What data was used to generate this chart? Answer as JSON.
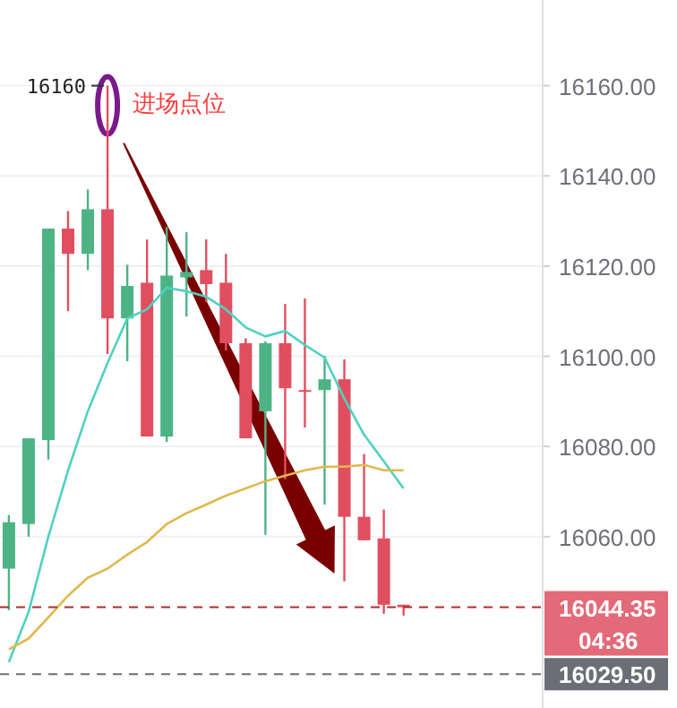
{
  "chart_data": {
    "type": "candlestick",
    "categories": [
      null,
      null,
      null,
      null,
      null,
      null,
      null,
      null,
      null,
      null,
      null,
      null,
      null,
      null,
      null,
      null,
      null,
      null,
      null,
      null,
      null
    ],
    "ohlc": [
      [
        16052.9,
        16064.8,
        16043.7,
        16063.2
      ],
      [
        16062.8,
        16081.8,
        16060.0,
        16081.8
      ],
      [
        16081.4,
        16128.3,
        16077.1,
        16128.3
      ],
      [
        16128.3,
        16132.2,
        16110.0,
        16122.7
      ],
      [
        16122.7,
        16137.0,
        16119.1,
        16132.6
      ],
      [
        16132.6,
        16160,
        16100.5,
        16108.4
      ],
      [
        16108.4,
        16120.3,
        16098.9,
        16115.6
      ],
      [
        16116.3,
        16125.9,
        16082.2,
        16082.2
      ],
      [
        16082.2,
        16128.7,
        16081.0,
        16117.9
      ],
      [
        16117.5,
        16127.5,
        16108.8,
        16118.7
      ],
      [
        16119.1,
        16125.9,
        16112.0,
        16116.0
      ],
      [
        16116.3,
        16122.7,
        16101.3,
        16102.9
      ],
      [
        16102.9,
        16104.0,
        16081.8,
        16081.8
      ],
      [
        16087.8,
        16103.3,
        16060.4,
        16102.9
      ],
      [
        16102.9,
        16111.6,
        16072.7,
        16092.9
      ],
      [
        16092.5,
        16112.8,
        16084.2,
        16092.3
      ],
      [
        16092.5,
        16100.1,
        16067.1,
        16094.9
      ],
      [
        16094.9,
        16099.3,
        16050.1,
        16064.4
      ],
      [
        16064.4,
        16078.3,
        16059.2,
        16059.2
      ],
      [
        16059.6,
        16066.0,
        16042.9,
        16044.9
      ],
      [
        16044.9,
        16044.9,
        16042.5,
        16044.35
      ]
    ],
    "colors": [
      "#4db385",
      "#4db385",
      "#4db385",
      "#e04f5f",
      "#4db385",
      "#e04f5f",
      "#4db385",
      "#e04f5f",
      "#4db385",
      "#4db385",
      "#e04f5f",
      "#e04f5f",
      "#e04f5f",
      "#4db385",
      "#e04f5f",
      "#e04f5f",
      "#4db385",
      "#e04f5f",
      "#e04f5f",
      "#e04f5f",
      "#e04f5f"
    ],
    "series": [
      {
        "type": "line",
        "color": "#4fd1c1",
        "values": [
          16032.2,
          16043.3,
          16060.0,
          16074.7,
          16087.8,
          16098.5,
          16108.4,
          16110.4,
          16115.2,
          16114.4,
          16113.2,
          16110.4,
          16106.4,
          16104.4,
          16105.6,
          16102.5,
          16099.7,
          16090.6,
          16082.6,
          16076.7,
          16070.7
        ]
      },
      {
        "type": "line",
        "color": "#e0b84f",
        "values": [
          16035.0,
          16037.4,
          16042.1,
          16046.9,
          16050.9,
          16052.9,
          16056.0,
          16058.8,
          16062.8,
          16065.2,
          16067.1,
          16069.1,
          16070.7,
          16072.3,
          16073.5,
          16074.7,
          16075.5,
          16075.5,
          16075.9,
          16074.7,
          16074.7
        ]
      }
    ],
    "ylim": [
      16022,
      16179
    ],
    "yticks": [
      {
        "value": 16060,
        "label": "16060.00"
      },
      {
        "value": 16080,
        "label": "16080.00"
      },
      {
        "value": 16100,
        "label": "16100.00"
      },
      {
        "value": 16120,
        "label": "16120.00"
      },
      {
        "value": 16140,
        "label": "16140.00"
      },
      {
        "value": 16160,
        "label": "16160.00"
      }
    ],
    "grid": "y",
    "tick_labels": "y",
    "ref_lines": [
      {
        "axis": "y",
        "value": 16044.35,
        "label": "16044.35",
        "color": "#b22a2a",
        "line_style": "dashed"
      },
      {
        "axis": "y",
        "value": 16029.5,
        "label": "16029.50",
        "color": "#6b6e75",
        "line_style": "dashed"
      }
    ],
    "annotations": [
      "16160",
      "进场点位",
      "04:36"
    ]
  }
}
